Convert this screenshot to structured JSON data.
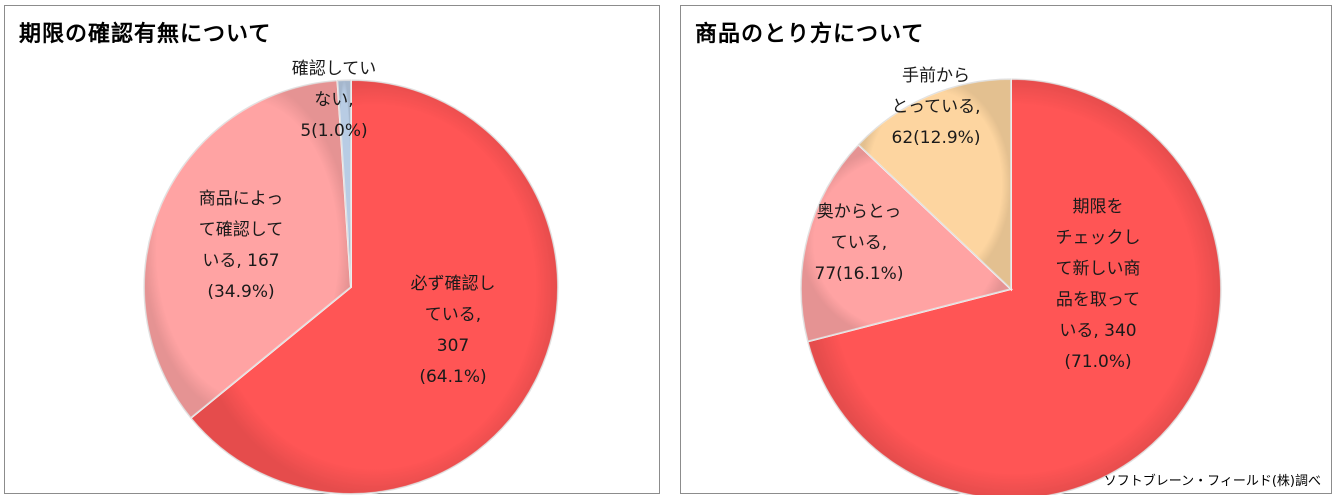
{
  "chart_data": [
    {
      "type": "pie",
      "title": "期限の確認有無について",
      "slices": [
        {
          "label": [
            "必ず確認し",
            "ている,",
            "307",
            "(64.1%)"
          ],
          "value": 307,
          "percent": 64.1,
          "color": "#ff5555"
        },
        {
          "label": [
            "商品によっ",
            "て確認して",
            "いる, 167",
            "(34.9%)"
          ],
          "value": 167,
          "percent": 34.9,
          "color": "#ffa3a3"
        },
        {
          "label": [
            "確認してい",
            "ない,",
            "5(1.0%)"
          ],
          "value": 5,
          "percent": 1.0,
          "color": "#b8cce4"
        }
      ]
    },
    {
      "type": "pie",
      "title": "商品のとり方について",
      "slices": [
        {
          "label": [
            "期限を",
            "チェックし",
            "て新しい商",
            "品を取って",
            "いる, 340",
            "(71.0%)"
          ],
          "value": 340,
          "percent": 71.0,
          "color": "#ff5555"
        },
        {
          "label": [
            "奥からとっ",
            "ている,",
            "77(16.1%)"
          ],
          "value": 77,
          "percent": 16.1,
          "color": "#ffa3a3"
        },
        {
          "label": [
            "手前から",
            "とっている,",
            "62(12.9%)"
          ],
          "value": 62,
          "percent": 12.9,
          "color": "#fdd5a0"
        }
      ]
    }
  ],
  "footer": {
    "credit": "ソフトブレーン・フィールド(株)調べ"
  }
}
